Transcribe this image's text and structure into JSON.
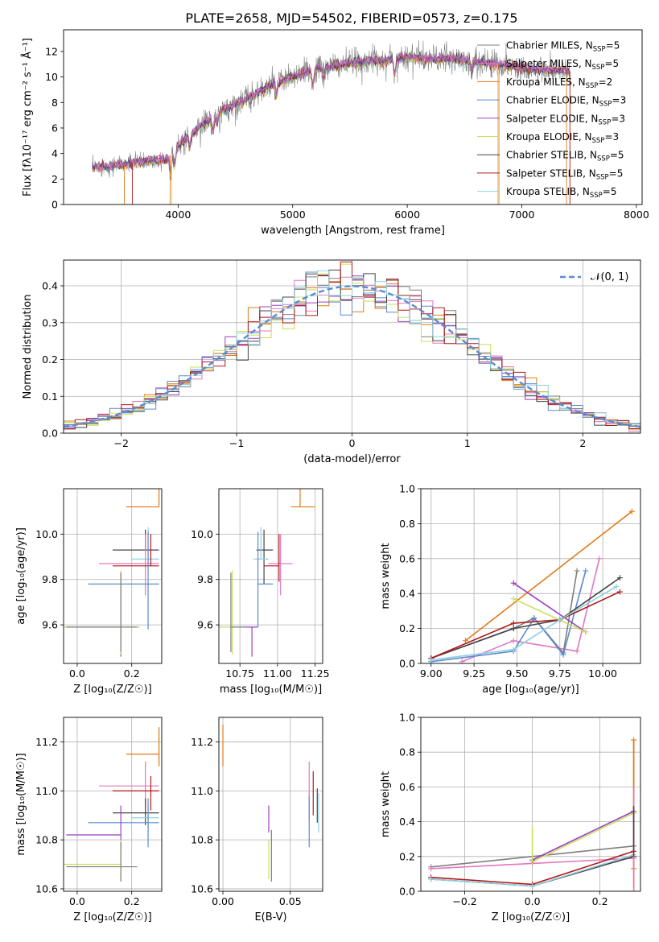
{
  "figure_title": "PLATE=2658, MJD=54502, FIBERID=0573, z=0.175",
  "colors": {
    "Chabrier MILES": "#7f7f7f",
    "Salpeter MILES": "#e377c2",
    "Kroupa MILES": "#e07b16",
    "Chabrier ELODIE": "#5b8bd0",
    "Salpeter ELODIE": "#9a3fbf",
    "Kroupa ELODIE": "#c8e05a",
    "Chabrier STELIB": "#444444",
    "Salpeter STELIB": "#b01a1a",
    "Kroupa STELIB": "#8fd0e0",
    "normal_curve": "#5b8bd0"
  },
  "chart_data": [
    {
      "id": "spectrum",
      "type": "line",
      "title": "PLATE=2658, MJD=54502, FIBERID=0573, z=0.175",
      "xlabel": "wavelength [Angstrom, rest frame]",
      "ylabel": "Flux [fλ10⁻¹⁷ erg cm⁻² s⁻¹ Å⁻¹]",
      "xlim": [
        3000,
        8050
      ],
      "ylim": [
        0,
        13.7
      ],
      "xticks": [
        4000,
        5000,
        6000,
        7000,
        8000
      ],
      "yticks": [
        0,
        2,
        4,
        6,
        8,
        10,
        12
      ],
      "legend": [
        {
          "label": "Chabrier MILES, N_SSP=5",
          "color_key": "Chabrier MILES"
        },
        {
          "label": "Salpeter MILES, N_SSP=5",
          "color_key": "Salpeter MILES"
        },
        {
          "label": "Kroupa MILES, N_SSP=2",
          "color_key": "Kroupa MILES"
        },
        {
          "label": "Chabrier ELODIE, N_SSP=3",
          "color_key": "Chabrier ELODIE"
        },
        {
          "label": "Salpeter ELODIE, N_SSP=3",
          "color_key": "Salpeter ELODIE"
        },
        {
          "label": "Kroupa ELODIE, N_SSP=3",
          "color_key": "Kroupa ELODIE"
        },
        {
          "label": "Chabrier STELIB, N_SSP=5",
          "color_key": "Chabrier STELIB"
        },
        {
          "label": "Salpeter STELIB, N_SSP=5",
          "color_key": "Salpeter STELIB"
        },
        {
          "label": "Kroupa STELIB, N_SSP=5",
          "color_key": "Kroupa STELIB"
        }
      ],
      "continuum": [
        [
          3250,
          2.9
        ],
        [
          3500,
          3.1
        ],
        [
          3700,
          3.4
        ],
        [
          3900,
          3.6
        ],
        [
          4000,
          4.6
        ],
        [
          4200,
          6.2
        ],
        [
          4400,
          7.4
        ],
        [
          4600,
          8.3
        ],
        [
          4800,
          9.3
        ],
        [
          5000,
          10.0
        ],
        [
          5200,
          10.6
        ],
        [
          5400,
          10.9
        ],
        [
          5600,
          11.2
        ],
        [
          5800,
          11.3
        ],
        [
          6000,
          11.6
        ],
        [
          6200,
          11.4
        ],
        [
          6400,
          11.4
        ],
        [
          6600,
          11.2
        ],
        [
          6800,
          11.0
        ],
        [
          7000,
          10.7
        ],
        [
          7200,
          10.5
        ],
        [
          7420,
          10.4
        ]
      ]
    },
    {
      "id": "residual_hist",
      "type": "line",
      "xlabel": "(data-model)/error",
      "ylabel": "Normed distribution",
      "xlim": [
        -2.5,
        2.5
      ],
      "ylim": [
        0,
        0.47
      ],
      "xticks": [
        -2,
        -1,
        0,
        1,
        2
      ],
      "yticks": [
        0.0,
        0.1,
        0.2,
        0.3,
        0.4
      ],
      "legend": [
        {
          "label": "𝒩(0, 1)",
          "color_key": "normal_curve"
        }
      ],
      "bins": {
        "start": -2.5,
        "width": 0.1,
        "count": 50
      }
    },
    {
      "id": "age_vs_Z",
      "type": "scatter",
      "xlabel": "Z [log₁₀(Z/Z☉)]",
      "ylabel": "age  [log₁₀(age/yr)]",
      "xlim": [
        -0.05,
        0.31
      ],
      "ylim": [
        9.43,
        10.2
      ],
      "xticks": [
        0.0,
        0.2
      ],
      "yticks": [
        9.6,
        9.8,
        10.0
      ],
      "points": [
        {
          "model": "Kroupa MILES",
          "x": 0.3,
          "y": 10.12,
          "xerr": [
            0.12,
            0.0
          ],
          "yerr": [
            0.0,
            0.1
          ]
        },
        {
          "model": "Chabrier STELIB",
          "x": 0.25,
          "y": 9.93,
          "xerr": [
            0.12,
            0.05
          ],
          "yerr": [
            0.0,
            0.09
          ]
        },
        {
          "model": "Kroupa STELIB",
          "x": 0.26,
          "y": 9.89,
          "xerr": [
            0.06,
            0.04
          ],
          "yerr": [
            0.0,
            0.14
          ]
        },
        {
          "model": "Salpeter MILES",
          "x": 0.25,
          "y": 9.87,
          "xerr": [
            0.17,
            0.05
          ],
          "yerr": [
            0.14,
            0.13
          ]
        },
        {
          "model": "Salpeter STELIB",
          "x": 0.27,
          "y": 9.86,
          "xerr": [
            0.14,
            0.03
          ],
          "yerr": [
            0.0,
            0.14
          ]
        },
        {
          "model": "Chabrier ELODIE",
          "x": 0.26,
          "y": 9.78,
          "xerr": [
            0.22,
            0.04
          ],
          "yerr": [
            0.2,
            0.23
          ]
        },
        {
          "model": "Salpeter ELODIE",
          "x": 0.16,
          "y": 9.59,
          "xerr": [
            0.2,
            0.0
          ],
          "yerr": [
            0.13,
            0.24
          ]
        },
        {
          "model": "Kroupa ELODIE",
          "x": 0.16,
          "y": 9.59,
          "xerr": [
            0.21,
            0.07
          ],
          "yerr": [
            0.12,
            0.25
          ]
        },
        {
          "model": "Chabrier MILES",
          "x": 0.16,
          "y": 9.59,
          "xerr": [
            0.2,
            0.06
          ],
          "yerr": [
            0.11,
            0.24
          ]
        }
      ]
    },
    {
      "id": "age_vs_mass",
      "type": "scatter",
      "xlabel": "mass [log₁₀(M/M☉)]",
      "ylabel": "",
      "xlim": [
        10.61,
        11.3
      ],
      "ylim": [
        9.43,
        10.2
      ],
      "xticks": [
        10.75,
        11.0,
        11.25
      ],
      "yticks": [
        9.6,
        9.8,
        10.0
      ],
      "points": [
        {
          "model": "Kroupa MILES",
          "x": 11.15,
          "y": 10.12,
          "xerr": [
            0.06,
            0.1
          ],
          "yerr": [
            0.0,
            0.1
          ]
        },
        {
          "model": "Chabrier STELIB",
          "x": 10.91,
          "y": 9.93,
          "xerr": [
            0.05,
            0.06
          ],
          "yerr": [
            0.15,
            0.09
          ]
        },
        {
          "model": "Kroupa STELIB",
          "x": 10.89,
          "y": 9.89,
          "xerr": [
            0.05,
            0.05
          ],
          "yerr": [
            0.0,
            0.14
          ]
        },
        {
          "model": "Salpeter MILES",
          "x": 11.02,
          "y": 9.87,
          "xerr": [
            0.08,
            0.08
          ],
          "yerr": [
            0.14,
            0.13
          ]
        },
        {
          "model": "Salpeter STELIB",
          "x": 11.01,
          "y": 9.86,
          "xerr": [
            0.1,
            0.0
          ],
          "yerr": [
            0.07,
            0.14
          ]
        },
        {
          "model": "Chabrier ELODIE",
          "x": 10.87,
          "y": 9.78,
          "xerr": [
            0.0,
            0.1
          ],
          "yerr": [
            0.19,
            0.23
          ]
        },
        {
          "model": "Salpeter ELODIE",
          "x": 10.83,
          "y": 9.59,
          "xerr": [
            0.06,
            0.04
          ],
          "yerr": [
            0.13,
            0.0
          ]
        },
        {
          "model": "Kroupa ELODIE",
          "x": 10.7,
          "y": 9.59,
          "xerr": [
            0.09,
            0.03
          ],
          "yerr": [
            0.12,
            0.25
          ]
        },
        {
          "model": "Chabrier MILES",
          "x": 10.69,
          "y": 9.59,
          "xerr": [
            0.0,
            0.1
          ],
          "yerr": [
            0.11,
            0.24
          ]
        }
      ]
    },
    {
      "id": "weight_vs_age",
      "type": "line",
      "xlabel": "age  [log₁₀(age/yr)]",
      "ylabel": "mass weight",
      "xlim": [
        8.94,
        10.22
      ],
      "ylim": [
        0,
        1.0
      ],
      "xticks": [
        9.0,
        9.25,
        9.5,
        9.75,
        10.0
      ],
      "yticks": [
        0.0,
        0.2,
        0.4,
        0.6,
        0.8,
        1.0
      ],
      "series": [
        {
          "model": "Kroupa MILES",
          "x": [
            9.2,
            10.17
          ],
          "y": [
            0.13,
            0.87
          ]
        },
        {
          "model": "Salpeter MILES",
          "x": [
            9.18,
            9.48,
            9.85,
            9.98
          ],
          "y": [
            0.01,
            0.13,
            0.07,
            0.6
          ]
        },
        {
          "model": "Chabrier MILES",
          "x": [
            9.0,
            9.48,
            9.6,
            9.77,
            9.85
          ],
          "y": [
            0.03,
            0.2,
            0.26,
            0.06,
            0.53
          ]
        },
        {
          "model": "Chabrier ELODIE",
          "x": [
            9.0,
            9.48,
            9.6,
            9.77,
            9.9
          ],
          "y": [
            0.01,
            0.07,
            0.26,
            0.05,
            0.53
          ]
        },
        {
          "model": "Salpeter ELODIE",
          "x": [
            9.48,
            9.9
          ],
          "y": [
            0.46,
            0.18
          ]
        },
        {
          "model": "Kroupa ELODIE",
          "x": [
            9.48,
            9.9
          ],
          "y": [
            0.37,
            0.18
          ]
        },
        {
          "model": "Chabrier STELIB",
          "x": [
            9.0,
            9.48,
            9.75,
            10.1
          ],
          "y": [
            0.03,
            0.2,
            0.25,
            0.49
          ]
        },
        {
          "model": "Salpeter STELIB",
          "x": [
            9.0,
            9.48,
            9.75,
            10.1
          ],
          "y": [
            0.03,
            0.23,
            0.25,
            0.41
          ]
        },
        {
          "model": "Kroupa STELIB",
          "x": [
            9.0,
            9.48,
            9.75,
            10.08
          ],
          "y": [
            0.02,
            0.08,
            0.25,
            0.44
          ]
        }
      ]
    },
    {
      "id": "mass_vs_Z",
      "type": "scatter",
      "xlabel": "Z [log₁₀(Z/Z☉)]",
      "ylabel": "mass [log₁₀(M/M☉)]",
      "xlim": [
        -0.05,
        0.31
      ],
      "ylim": [
        10.59,
        11.3
      ],
      "xticks": [
        0.0,
        0.2
      ],
      "yticks": [
        10.6,
        10.8,
        11.0,
        11.2
      ],
      "points": [
        {
          "model": "Kroupa MILES",
          "x": 0.3,
          "y": 11.15,
          "xerr": [
            0.12,
            0.0
          ],
          "yerr": [
            0.05,
            0.11
          ]
        },
        {
          "model": "Salpeter MILES",
          "x": 0.25,
          "y": 11.02,
          "xerr": [
            0.17,
            0.05
          ],
          "yerr": [
            0.08,
            0.1
          ]
        },
        {
          "model": "Salpeter STELIB",
          "x": 0.27,
          "y": 11.0,
          "xerr": [
            0.14,
            0.03
          ],
          "yerr": [
            0.08,
            0.06
          ]
        },
        {
          "model": "Chabrier STELIB",
          "x": 0.25,
          "y": 10.91,
          "xerr": [
            0.12,
            0.05
          ],
          "yerr": [
            0.05,
            0.06
          ]
        },
        {
          "model": "Kroupa STELIB",
          "x": 0.26,
          "y": 10.89,
          "xerr": [
            0.06,
            0.04
          ],
          "yerr": [
            0.05,
            0.05
          ]
        },
        {
          "model": "Chabrier ELODIE",
          "x": 0.26,
          "y": 10.87,
          "xerr": [
            0.22,
            0.04
          ],
          "yerr": [
            0.1,
            0.1
          ]
        },
        {
          "model": "Salpeter ELODIE",
          "x": 0.16,
          "y": 10.82,
          "xerr": [
            0.2,
            0.0
          ],
          "yerr": [
            0.06,
            0.12
          ]
        },
        {
          "model": "Kroupa ELODIE",
          "x": 0.16,
          "y": 10.7,
          "xerr": [
            0.21,
            0.0
          ],
          "yerr": [
            0.07,
            0.1
          ]
        },
        {
          "model": "Chabrier MILES",
          "x": 0.16,
          "y": 10.69,
          "xerr": [
            0.2,
            0.06
          ],
          "yerr": [
            0.06,
            0.1
          ]
        }
      ]
    },
    {
      "id": "mass_vs_EBV",
      "type": "scatter",
      "xlabel": "E(B-V)",
      "ylabel": "",
      "xlim": [
        -0.003,
        0.074
      ],
      "ylim": [
        10.59,
        11.3
      ],
      "xticks": [
        0.0,
        0.05
      ],
      "yticks": [
        10.6,
        10.8,
        11.0,
        11.2
      ],
      "points": [
        {
          "model": "Kroupa MILES",
          "x": 0.0,
          "y": 11.17,
          "xerr": [
            0.0,
            0.0
          ],
          "yerr": [
            0.07,
            0.1
          ]
        },
        {
          "model": "Salpeter MILES",
          "x": 0.064,
          "y": 10.98,
          "xerr": [
            0.0,
            0.0
          ],
          "yerr": [
            0.1,
            0.14
          ]
        },
        {
          "model": "Salpeter STELIB",
          "x": 0.067,
          "y": 10.99,
          "xerr": [
            0.0,
            0.0
          ],
          "yerr": [
            0.09,
            0.09
          ]
        },
        {
          "model": "Chabrier STELIB",
          "x": 0.07,
          "y": 10.93,
          "xerr": [
            0.0,
            0.0
          ],
          "yerr": [
            0.06,
            0.08
          ]
        },
        {
          "model": "Kroupa STELIB",
          "x": 0.071,
          "y": 10.91,
          "xerr": [
            0.0,
            0.0
          ],
          "yerr": [
            0.08,
            0.08
          ]
        },
        {
          "model": "Chabrier ELODIE",
          "x": 0.064,
          "y": 10.88,
          "xerr": [
            0.0,
            0.0
          ],
          "yerr": [
            0.11,
            0.1
          ]
        },
        {
          "model": "Salpeter ELODIE",
          "x": 0.034,
          "y": 10.88,
          "xerr": [
            0.0,
            0.0
          ],
          "yerr": [
            0.05,
            0.06
          ]
        },
        {
          "model": "Kroupa ELODIE",
          "x": 0.034,
          "y": 10.72,
          "xerr": [
            0.0,
            0.0
          ],
          "yerr": [
            0.08,
            0.08
          ]
        },
        {
          "model": "Chabrier MILES",
          "x": 0.036,
          "y": 10.73,
          "xerr": [
            0.0,
            0.0
          ],
          "yerr": [
            0.1,
            0.11
          ]
        }
      ]
    },
    {
      "id": "weight_vs_Z",
      "type": "line",
      "xlabel": "Z [log₁₀(Z/Z☉)]",
      "ylabel": "mass weight",
      "xlim": [
        -0.33,
        0.32
      ],
      "ylim": [
        0,
        1.0
      ],
      "xticks": [
        -0.2,
        0.0,
        0.2
      ],
      "yticks": [
        0.0,
        0.2,
        0.4,
        0.6,
        0.8,
        1.0
      ],
      "series": [
        {
          "model": "Chabrier MILES",
          "x": [
            -0.3,
            0.0,
            0.3
          ],
          "y": [
            0.14,
            0.2,
            0.26
          ]
        },
        {
          "model": "Salpeter MILES",
          "x": [
            -0.3,
            0.0,
            0.3
          ],
          "y": [
            0.13,
            0.16,
            0.19
          ]
        },
        {
          "model": "Kroupa ELODIE",
          "x": [
            0.0,
            0.3
          ],
          "y": [
            0.17,
            0.45
          ]
        },
        {
          "model": "Salpeter ELODIE",
          "x": [
            0.0,
            0.3
          ],
          "y": [
            0.18,
            0.46
          ]
        },
        {
          "model": "Chabrier STELIB",
          "x": [
            -0.3,
            0.0,
            0.3
          ],
          "y": [
            0.07,
            0.03,
            0.2
          ]
        },
        {
          "model": "Salpeter STELIB",
          "x": [
            -0.3,
            0.0,
            0.3
          ],
          "y": [
            0.08,
            0.04,
            0.23
          ]
        },
        {
          "model": "Kroupa STELIB",
          "x": [
            -0.3,
            0.0,
            0.3
          ],
          "y": [
            0.07,
            0.03,
            0.21
          ]
        },
        {
          "model": "Kroupa MILES",
          "x": [
            0.3,
            0.3
          ],
          "y": [
            0.13,
            0.87
          ]
        }
      ],
      "stacks": [
        {
          "model": "Kroupa ELODIE",
          "x": 0.0,
          "ymin": 0.17,
          "ymax": 0.37
        },
        {
          "model": "Kroupa MILES",
          "x": 0.3,
          "ymin": 0.02,
          "ymax": 0.87
        },
        {
          "model": "Salpeter MILES",
          "x": 0.3,
          "ymin": 0.0,
          "ymax": 0.6
        },
        {
          "model": "Chabrier STELIB",
          "x": 0.3,
          "ymin": 0.2,
          "ymax": 0.49
        }
      ]
    }
  ]
}
